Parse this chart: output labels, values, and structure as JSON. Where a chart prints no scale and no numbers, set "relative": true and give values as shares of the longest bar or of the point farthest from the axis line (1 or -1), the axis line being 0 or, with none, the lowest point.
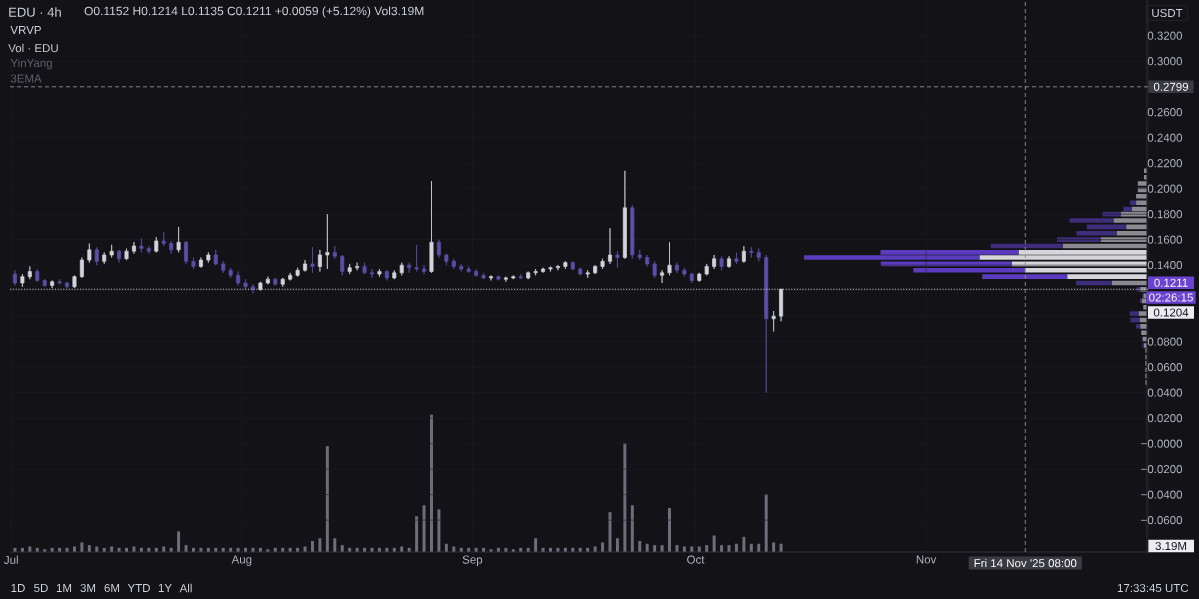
{
  "chart_data": [
    {
      "type": "candlestick",
      "title": "EDU · 4h",
      "subtitle": "O0.1152 H0.1214 L0.1135 C0.1211 +0.0059 (+5.12%) Vol3.19M",
      "ylabel": "USDT",
      "x": [
        "2025-07-01T12:00",
        "2025-07-02T12:00",
        "2025-07-03T12:00",
        "2025-07-04T12:00",
        "2025-07-05T12:00",
        "2025-07-06T12:00",
        "2025-07-07T12:00",
        "2025-07-08T12:00",
        "2025-07-09T12:00",
        "2025-07-10T12:00",
        "2025-07-11T12:00",
        "2025-07-12T12:00",
        "2025-07-13T12:00",
        "2025-07-14T12:00",
        "2025-07-15T12:00",
        "2025-07-16T12:00",
        "2025-07-17T12:00",
        "2025-07-18T12:00",
        "2025-07-19T12:00",
        "2025-07-20T12:00",
        "2025-07-21T12:00",
        "2025-07-22T12:00",
        "2025-07-23T12:00",
        "2025-07-24T12:00",
        "2025-07-25T12:00",
        "2025-07-26T12:00",
        "2025-07-27T12:00",
        "2025-07-28T12:00",
        "2025-07-29T12:00",
        "2025-07-30T12:00",
        "2025-07-31T12:00",
        "2025-08-01T12:00",
        "2025-08-02T12:00",
        "2025-08-03T12:00",
        "2025-08-04T12:00",
        "2025-08-05T12:00",
        "2025-08-06T12:00",
        "2025-08-07T12:00",
        "2025-08-08T12:00",
        "2025-08-09T12:00",
        "2025-08-10T12:00",
        "2025-08-11T12:00",
        "2025-08-12T12:00",
        "2025-08-13T12:00",
        "2025-08-14T12:00",
        "2025-08-15T12:00",
        "2025-08-16T12:00",
        "2025-08-17T12:00",
        "2025-08-18T12:00",
        "2025-08-19T12:00",
        "2025-08-20T12:00",
        "2025-08-21T12:00",
        "2025-08-22T12:00",
        "2025-08-23T12:00",
        "2025-08-24T12:00",
        "2025-08-25T12:00",
        "2025-08-26T12:00",
        "2025-08-27T12:00",
        "2025-08-28T12:00",
        "2025-08-29T12:00",
        "2025-08-30T12:00",
        "2025-08-31T12:00",
        "2025-09-01T12:00",
        "2025-09-02T12:00",
        "2025-09-03T12:00",
        "2025-09-04T12:00",
        "2025-09-05T12:00",
        "2025-09-06T12:00",
        "2025-09-07T12:00",
        "2025-09-08T12:00",
        "2025-09-09T12:00",
        "2025-09-10T12:00",
        "2025-09-11T12:00",
        "2025-09-12T12:00",
        "2025-09-13T12:00",
        "2025-09-14T12:00",
        "2025-09-15T12:00",
        "2025-09-16T12:00",
        "2025-09-17T12:00",
        "2025-09-18T12:00",
        "2025-09-19T12:00",
        "2025-09-20T12:00",
        "2025-09-21T12:00",
        "2025-09-22T12:00",
        "2025-09-23T12:00",
        "2025-09-24T12:00",
        "2025-09-25T12:00",
        "2025-09-26T12:00",
        "2025-09-27T12:00",
        "2025-09-28T12:00",
        "2025-09-29T12:00",
        "2025-09-30T12:00",
        "2025-10-01T12:00",
        "2025-10-02T12:00",
        "2025-10-03T12:00",
        "2025-10-04T12:00",
        "2025-10-05T12:00",
        "2025-10-06T12:00",
        "2025-10-07T12:00",
        "2025-10-08T12:00",
        "2025-10-09T12:00",
        "2025-10-10T12:00",
        "2025-10-11T12:00",
        "2025-10-12T12:00"
      ],
      "ohlc": [
        [
          0.133,
          0.136,
          0.124,
          0.126
        ],
        [
          0.126,
          0.133,
          0.123,
          0.131
        ],
        [
          0.131,
          0.139,
          0.129,
          0.135
        ],
        [
          0.135,
          0.137,
          0.127,
          0.128
        ],
        [
          0.128,
          0.129,
          0.123,
          0.124
        ],
        [
          0.124,
          0.128,
          0.122,
          0.127
        ],
        [
          0.127,
          0.129,
          0.125,
          0.126
        ],
        [
          0.126,
          0.127,
          0.122,
          0.123
        ],
        [
          0.123,
          0.132,
          0.122,
          0.131
        ],
        [
          0.131,
          0.146,
          0.13,
          0.144
        ],
        [
          0.144,
          0.157,
          0.142,
          0.152
        ],
        [
          0.152,
          0.154,
          0.14,
          0.143
        ],
        [
          0.143,
          0.15,
          0.141,
          0.148
        ],
        [
          0.148,
          0.156,
          0.146,
          0.151
        ],
        [
          0.151,
          0.152,
          0.142,
          0.145
        ],
        [
          0.145,
          0.153,
          0.144,
          0.151
        ],
        [
          0.151,
          0.158,
          0.149,
          0.155
        ],
        [
          0.155,
          0.161,
          0.15,
          0.153
        ],
        [
          0.153,
          0.155,
          0.149,
          0.151
        ],
        [
          0.151,
          0.162,
          0.15,
          0.159
        ],
        [
          0.159,
          0.166,
          0.155,
          0.157
        ],
        [
          0.157,
          0.159,
          0.149,
          0.152
        ],
        [
          0.152,
          0.17,
          0.15,
          0.158
        ],
        [
          0.158,
          0.159,
          0.141,
          0.143
        ],
        [
          0.143,
          0.146,
          0.137,
          0.139
        ],
        [
          0.139,
          0.146,
          0.138,
          0.144
        ],
        [
          0.144,
          0.15,
          0.142,
          0.148
        ],
        [
          0.148,
          0.152,
          0.14,
          0.141
        ],
        [
          0.141,
          0.143,
          0.134,
          0.136
        ],
        [
          0.136,
          0.138,
          0.13,
          0.132
        ],
        [
          0.132,
          0.135,
          0.124,
          0.126
        ],
        [
          0.126,
          0.129,
          0.121,
          0.123
        ],
        [
          0.123,
          0.125,
          0.118,
          0.121
        ],
        [
          0.121,
          0.127,
          0.12,
          0.126
        ],
        [
          0.126,
          0.131,
          0.125,
          0.129
        ],
        [
          0.129,
          0.13,
          0.124,
          0.125
        ],
        [
          0.125,
          0.13,
          0.123,
          0.129
        ],
        [
          0.129,
          0.134,
          0.128,
          0.132
        ],
        [
          0.132,
          0.138,
          0.131,
          0.136
        ],
        [
          0.136,
          0.144,
          0.135,
          0.141
        ],
        [
          0.141,
          0.154,
          0.134,
          0.139
        ],
        [
          0.139,
          0.152,
          0.135,
          0.148
        ],
        [
          0.148,
          0.18,
          0.137,
          0.15
        ],
        [
          0.15,
          0.155,
          0.145,
          0.147
        ],
        [
          0.147,
          0.148,
          0.132,
          0.135
        ],
        [
          0.135,
          0.141,
          0.133,
          0.138
        ],
        [
          0.138,
          0.142,
          0.136,
          0.139
        ],
        [
          0.139,
          0.142,
          0.133,
          0.134
        ],
        [
          0.134,
          0.137,
          0.13,
          0.133
        ],
        [
          0.133,
          0.137,
          0.131,
          0.135
        ],
        [
          0.135,
          0.136,
          0.128,
          0.13
        ],
        [
          0.13,
          0.136,
          0.129,
          0.134
        ],
        [
          0.134,
          0.142,
          0.132,
          0.14
        ],
        [
          0.14,
          0.142,
          0.134,
          0.138
        ],
        [
          0.138,
          0.156,
          0.135,
          0.137
        ],
        [
          0.137,
          0.14,
          0.133,
          0.135
        ],
        [
          0.135,
          0.206,
          0.134,
          0.158
        ],
        [
          0.158,
          0.16,
          0.146,
          0.148
        ],
        [
          0.148,
          0.149,
          0.14,
          0.143
        ],
        [
          0.143,
          0.145,
          0.137,
          0.139
        ],
        [
          0.139,
          0.141,
          0.135,
          0.137
        ],
        [
          0.137,
          0.139,
          0.134,
          0.135
        ],
        [
          0.135,
          0.137,
          0.131,
          0.132
        ],
        [
          0.132,
          0.134,
          0.129,
          0.13
        ],
        [
          0.13,
          0.132,
          0.128,
          0.131
        ],
        [
          0.131,
          0.132,
          0.128,
          0.129
        ],
        [
          0.129,
          0.131,
          0.127,
          0.13
        ],
        [
          0.13,
          0.132,
          0.129,
          0.131
        ],
        [
          0.131,
          0.133,
          0.129,
          0.13
        ],
        [
          0.13,
          0.135,
          0.129,
          0.134
        ],
        [
          0.134,
          0.137,
          0.132,
          0.135
        ],
        [
          0.135,
          0.138,
          0.134,
          0.137
        ],
        [
          0.137,
          0.139,
          0.135,
          0.138
        ],
        [
          0.138,
          0.14,
          0.136,
          0.139
        ],
        [
          0.139,
          0.143,
          0.137,
          0.142
        ],
        [
          0.142,
          0.143,
          0.136,
          0.137
        ],
        [
          0.137,
          0.138,
          0.132,
          0.133
        ],
        [
          0.133,
          0.136,
          0.13,
          0.134
        ],
        [
          0.134,
          0.14,
          0.133,
          0.139
        ],
        [
          0.139,
          0.145,
          0.137,
          0.143
        ],
        [
          0.143,
          0.169,
          0.141,
          0.148
        ],
        [
          0.148,
          0.151,
          0.138,
          0.146
        ],
        [
          0.146,
          0.214,
          0.145,
          0.185
        ],
        [
          0.185,
          0.187,
          0.145,
          0.148
        ],
        [
          0.148,
          0.152,
          0.144,
          0.146
        ],
        [
          0.146,
          0.148,
          0.139,
          0.141
        ],
        [
          0.141,
          0.143,
          0.13,
          0.132
        ],
        [
          0.132,
          0.136,
          0.126,
          0.134
        ],
        [
          0.134,
          0.158,
          0.132,
          0.14
        ],
        [
          0.14,
          0.142,
          0.134,
          0.136
        ],
        [
          0.136,
          0.138,
          0.131,
          0.133
        ],
        [
          0.133,
          0.134,
          0.126,
          0.128
        ],
        [
          0.128,
          0.134,
          0.127,
          0.133
        ],
        [
          0.133,
          0.141,
          0.132,
          0.139
        ],
        [
          0.139,
          0.148,
          0.137,
          0.145
        ],
        [
          0.145,
          0.147,
          0.136,
          0.139
        ],
        [
          0.139,
          0.147,
          0.138,
          0.145
        ],
        [
          0.145,
          0.15,
          0.141,
          0.143
        ],
        [
          0.143,
          0.155,
          0.142,
          0.151
        ],
        [
          0.151,
          0.154,
          0.146,
          0.15
        ],
        [
          0.15,
          0.153,
          0.143,
          0.146
        ],
        [
          0.146,
          0.148,
          0.04,
          0.098
        ],
        [
          0.098,
          0.104,
          0.088,
          0.1
        ],
        [
          0.1,
          0.1214,
          0.096,
          0.1211
        ]
      ],
      "colors": [
        "#5b4fa8",
        "#d1d4dc",
        "#d1d4dc",
        "#5b4fa8",
        "#5b4fa8",
        "#d1d4dc",
        "#5b4fa8",
        "#5b4fa8",
        "#d1d4dc",
        "#d1d4dc",
        "#d1d4dc",
        "#5b4fa8",
        "#d1d4dc",
        "#d1d4dc",
        "#5b4fa8",
        "#d1d4dc",
        "#d1d4dc",
        "#5b4fa8",
        "#5b4fa8",
        "#d1d4dc",
        "#5b4fa8",
        "#5b4fa8",
        "#d1d4dc",
        "#5b4fa8",
        "#5b4fa8",
        "#d1d4dc",
        "#d1d4dc",
        "#5b4fa8",
        "#5b4fa8",
        "#5b4fa8",
        "#5b4fa8",
        "#5b4fa8",
        "#5b4fa8",
        "#d1d4dc",
        "#d1d4dc",
        "#5b4fa8",
        "#d1d4dc",
        "#d1d4dc",
        "#d1d4dc",
        "#d1d4dc",
        "#5b4fa8",
        "#d1d4dc",
        "#d1d4dc",
        "#5b4fa8",
        "#5b4fa8",
        "#d1d4dc",
        "#d1d4dc",
        "#5b4fa8",
        "#5b4fa8",
        "#d1d4dc",
        "#5b4fa8",
        "#d1d4dc",
        "#d1d4dc",
        "#5b4fa8",
        "#5b4fa8",
        "#5b4fa8",
        "#d1d4dc",
        "#5b4fa8",
        "#5b4fa8",
        "#5b4fa8",
        "#5b4fa8",
        "#5b4fa8",
        "#5b4fa8",
        "#5b4fa8",
        "#d1d4dc",
        "#5b4fa8",
        "#d1d4dc",
        "#d1d4dc",
        "#5b4fa8",
        "#d1d4dc",
        "#d1d4dc",
        "#d1d4dc",
        "#d1d4dc",
        "#d1d4dc",
        "#d1d4dc",
        "#5b4fa8",
        "#5b4fa8",
        "#d1d4dc",
        "#d1d4dc",
        "#d1d4dc",
        "#d1d4dc",
        "#5b4fa8",
        "#d1d4dc",
        "#5b4fa8",
        "#5b4fa8",
        "#5b4fa8",
        "#5b4fa8",
        "#d1d4dc",
        "#d1d4dc",
        "#5b4fa8",
        "#5b4fa8",
        "#5b4fa8",
        "#d1d4dc",
        "#d1d4dc",
        "#d1d4dc",
        "#5b4fa8",
        "#d1d4dc",
        "#5b4fa8",
        "#d1d4dc",
        "#5b4fa8",
        "#5b4fa8",
        "#5b4fa8",
        "#d1d4dc",
        "#d1d4dc"
      ],
      "xlim": [
        "2025-06-30T20:00",
        "2025-11-30T20:00"
      ],
      "xticks": [
        {
          "value": "2025-07-01",
          "label": "Jul"
        },
        {
          "value": "2025-08-01",
          "label": "Aug"
        },
        {
          "value": "2025-09-01",
          "label": "Sep"
        },
        {
          "value": "2025-10-01",
          "label": "Oct"
        },
        {
          "value": "2025-11-01",
          "label": "Nov"
        }
      ],
      "ylim": [
        -0.085,
        0.348
      ],
      "yticks": [
        {
          "value": 0.32,
          "label": "0.3200"
        },
        {
          "value": 0.3,
          "label": "0.3000"
        },
        {
          "value": 0.28,
          "label": null
        },
        {
          "value": 0.26,
          "label": "0.2600"
        },
        {
          "value": 0.24,
          "label": "0.2400"
        },
        {
          "value": 0.22,
          "label": "0.2200"
        },
        {
          "value": 0.2,
          "label": "0.2000"
        },
        {
          "value": 0.18,
          "label": "0.1800"
        },
        {
          "value": 0.16,
          "label": "0.1600"
        },
        {
          "value": 0.14,
          "label": "0.1400"
        },
        {
          "value": 0.12,
          "label": null
        },
        {
          "value": 0.1,
          "label": null
        },
        {
          "value": 0.08,
          "label": "0.0800"
        },
        {
          "value": 0.06,
          "label": "0.0600"
        },
        {
          "value": 0.04,
          "label": "0.0400"
        },
        {
          "value": 0.02,
          "label": "0.0200"
        },
        {
          "value": 0,
          "label": "−0.0000"
        },
        {
          "value": -0.02,
          "label": "−0.0200"
        },
        {
          "value": -0.04,
          "label": "−0.0400"
        },
        {
          "value": -0.06,
          "label": "−0.0600"
        }
      ],
      "grid": true,
      "ref_lines": [
        {
          "axis": "y",
          "value": 0.1211,
          "label": "0.1211",
          "color": "#d9d9de",
          "line_style": "dotted"
        },
        {
          "axis": "y",
          "value": 0.2799,
          "label": "0.2799",
          "color": "#8f8f99",
          "line_style": "dashed"
        },
        {
          "axis": "x",
          "value": "2025-11-14T08:00",
          "label": "Fri 14 Nov '25 08:00",
          "color": "#8f8f99",
          "line_style": "dashed"
        }
      ],
      "annotations": [
        "VRVP",
        "YinYang",
        "3EMA",
        "1D",
        "5D",
        "1M",
        "3M",
        "6M",
        "YTD",
        "1Y",
        "All",
        "17:33:45 UTC",
        "02:26:15",
        "0.1204"
      ]
    },
    {
      "type": "bar",
      "title": "Vol · EDU",
      "relative": true,
      "tick_labels": false,
      "color": "#6e6e7a",
      "x": [
        "2025-07-01T12:00",
        "2025-07-02T12:00",
        "2025-07-03T12:00",
        "2025-07-04T12:00",
        "2025-07-05T12:00",
        "2025-07-06T12:00",
        "2025-07-07T12:00",
        "2025-07-08T12:00",
        "2025-07-09T12:00",
        "2025-07-10T12:00",
        "2025-07-11T12:00",
        "2025-07-12T12:00",
        "2025-07-13T12:00",
        "2025-07-14T12:00",
        "2025-07-15T12:00",
        "2025-07-16T12:00",
        "2025-07-17T12:00",
        "2025-07-18T12:00",
        "2025-07-19T12:00",
        "2025-07-20T12:00",
        "2025-07-21T12:00",
        "2025-07-22T12:00",
        "2025-07-23T12:00",
        "2025-07-24T12:00",
        "2025-07-25T12:00",
        "2025-07-26T12:00",
        "2025-07-27T12:00",
        "2025-07-28T12:00",
        "2025-07-29T12:00",
        "2025-07-30T12:00",
        "2025-07-31T12:00",
        "2025-08-01T12:00",
        "2025-08-02T12:00",
        "2025-08-03T12:00",
        "2025-08-04T12:00",
        "2025-08-05T12:00",
        "2025-08-06T12:00",
        "2025-08-07T12:00",
        "2025-08-08T12:00",
        "2025-08-09T12:00",
        "2025-08-10T12:00",
        "2025-08-11T12:00",
        "2025-08-12T12:00",
        "2025-08-13T12:00",
        "2025-08-14T12:00",
        "2025-08-15T12:00",
        "2025-08-16T12:00",
        "2025-08-17T12:00",
        "2025-08-18T12:00",
        "2025-08-19T12:00",
        "2025-08-20T12:00",
        "2025-08-21T12:00",
        "2025-08-22T12:00",
        "2025-08-23T12:00",
        "2025-08-24T12:00",
        "2025-08-25T12:00",
        "2025-08-26T12:00",
        "2025-08-27T12:00",
        "2025-08-28T12:00",
        "2025-08-29T12:00",
        "2025-08-30T12:00",
        "2025-08-31T12:00",
        "2025-09-01T12:00",
        "2025-09-02T12:00",
        "2025-09-03T12:00",
        "2025-09-04T12:00",
        "2025-09-05T12:00",
        "2025-09-06T12:00",
        "2025-09-07T12:00",
        "2025-09-08T12:00",
        "2025-09-09T12:00",
        "2025-09-10T12:00",
        "2025-09-11T12:00",
        "2025-09-12T12:00",
        "2025-09-13T12:00",
        "2025-09-14T12:00",
        "2025-09-15T12:00",
        "2025-09-16T12:00",
        "2025-09-17T12:00",
        "2025-09-18T12:00",
        "2025-09-19T12:00",
        "2025-09-20T12:00",
        "2025-09-21T12:00",
        "2025-09-22T12:00",
        "2025-09-23T12:00",
        "2025-09-24T12:00",
        "2025-09-25T12:00",
        "2025-09-26T12:00",
        "2025-09-27T12:00",
        "2025-09-28T12:00",
        "2025-09-29T12:00",
        "2025-09-30T12:00",
        "2025-10-01T12:00",
        "2025-10-02T12:00",
        "2025-10-03T12:00",
        "2025-10-04T12:00",
        "2025-10-05T12:00",
        "2025-10-06T12:00",
        "2025-10-07T12:00",
        "2025-10-08T12:00",
        "2025-10-09T12:00",
        "2025-10-10T12:00",
        "2025-10-11T12:00",
        "2025-10-12T12:00"
      ],
      "values": [
        0.03,
        0.03,
        0.04,
        0.03,
        0.02,
        0.03,
        0.03,
        0.03,
        0.04,
        0.07,
        0.05,
        0.04,
        0.03,
        0.04,
        0.03,
        0.03,
        0.04,
        0.03,
        0.03,
        0.03,
        0.04,
        0.03,
        0.15,
        0.05,
        0.03,
        0.03,
        0.03,
        0.03,
        0.03,
        0.03,
        0.03,
        0.03,
        0.03,
        0.03,
        0.02,
        0.03,
        0.03,
        0.03,
        0.03,
        0.04,
        0.08,
        0.1,
        0.77,
        0.1,
        0.05,
        0.03,
        0.03,
        0.03,
        0.03,
        0.03,
        0.03,
        0.03,
        0.04,
        0.03,
        0.26,
        0.34,
        1,
        0.31,
        0.06,
        0.04,
        0.03,
        0.03,
        0.03,
        0.03,
        0.02,
        0.03,
        0.03,
        0.02,
        0.03,
        0.03,
        0.1,
        0.03,
        0.03,
        0.03,
        0.03,
        0.03,
        0.03,
        0.03,
        0.04,
        0.07,
        0.29,
        0.1,
        0.79,
        0.34,
        0.08,
        0.06,
        0.05,
        0.05,
        0.32,
        0.05,
        0.04,
        0.04,
        0.04,
        0.05,
        0.12,
        0.05,
        0.05,
        0.06,
        0.11,
        0.06,
        0.06,
        0.42,
        0.07,
        0.06
      ],
      "xlim": [
        "2025-06-30T20:00",
        "2025-11-30T20:00"
      ],
      "annotations": [
        "3.19M"
      ]
    },
    {
      "type": "bar",
      "orientation": "horizontal",
      "stacked": true,
      "relative": true,
      "tick_labels": false,
      "x": [
        0.214,
        0.209,
        0.204,
        0.199,
        0.194,
        0.189,
        0.184,
        0.18,
        0.175,
        0.17,
        0.165,
        0.16,
        0.155,
        0.15,
        0.146,
        0.141,
        0.136,
        0.131,
        0.126,
        0.121,
        0.116,
        0.112,
        0.107,
        0.102,
        0.097,
        0.092,
        0.087,
        0.082,
        0.077,
        0.073,
        0.068,
        0.063,
        0.058,
        0.053,
        0.048
      ],
      "ylim": [
        -0.085,
        0.348
      ],
      "series": [
        {
          "colors": [
            "#8a8a90",
            "#8a8a90",
            "#8a8a90",
            "#8a8a90",
            "#8a8a90",
            "#8a8a90",
            "#8a8a90",
            "#8a8a90",
            "#8a8a90",
            "#8a8a90",
            "#8a8a90",
            "#8a8a90",
            "#8a8a90",
            "#d6d6da",
            "#d6d6da",
            "#d6d6da",
            "#d6d6da",
            "#d6d6da",
            "#8a8a90",
            "#8a8a90",
            "#8a8a90",
            "#8a8a90",
            "#8a8a90",
            "#8a8a90",
            "#8a8a90",
            "#8a8a90",
            "#8a8a90",
            "#8a8a90",
            "#8a8a90",
            "#8a8a90",
            "#8a8a90",
            "#8a8a90",
            "#8a8a90",
            "#8a8a90",
            "#8a8a90"
          ],
          "values": [
            0.008,
            0.008,
            0.026,
            0.026,
            0.031,
            0.031,
            0.043,
            0.076,
            0.097,
            0.06,
            0.088,
            0.134,
            0.245,
            0.374,
            0.488,
            0.394,
            0.355,
            0.232,
            0.102,
            0.019,
            0.01,
            0.015,
            0.01,
            0.024,
            0.021,
            0.019,
            0.016,
            0.012,
            0.008,
            0.004,
            0.004,
            0.004,
            0.004,
            0.004,
            0.004
          ]
        },
        {
          "colors": [
            "#3d2d7a",
            "#3d2d7a",
            "#3d2d7a",
            "#3d2d7a",
            "#3d2d7a",
            "#3d2d7a",
            "#3d2d7a",
            "#3d2d7a",
            "#3d2d7a",
            "#3d2d7a",
            "#3d2d7a",
            "#3d2d7a",
            "#3d2d7a",
            "#5b3cbf",
            "#5b3cbf",
            "#5b3cbf",
            "#5b3cbf",
            "#5b3cbf",
            "#3d2d7a",
            "#3d2d7a",
            "#3d2d7a",
            "#3d2d7a",
            "#3d2d7a",
            "#3d2d7a",
            "#3d2d7a",
            "#3d2d7a",
            "#3d2d7a",
            "#3d2d7a",
            "#3d2d7a",
            "#3d2d7a",
            "#3d2d7a",
            "#3d2d7a",
            "#3d2d7a",
            "#3d2d7a",
            "#3d2d7a"
          ],
          "values": [
            0,
            0,
            0,
            0,
            0,
            0.018,
            0.025,
            0.053,
            0.128,
            0.115,
            0.117,
            0.128,
            0.21,
            0.403,
            0.512,
            0.382,
            0.326,
            0.248,
            0.104,
            0.01,
            0.003,
            0.005,
            0,
            0.026,
            0.027,
            0.012,
            0,
            0.003,
            0.005,
            0,
            0,
            0,
            0,
            0,
            0
          ]
        }
      ]
    }
  ]
}
